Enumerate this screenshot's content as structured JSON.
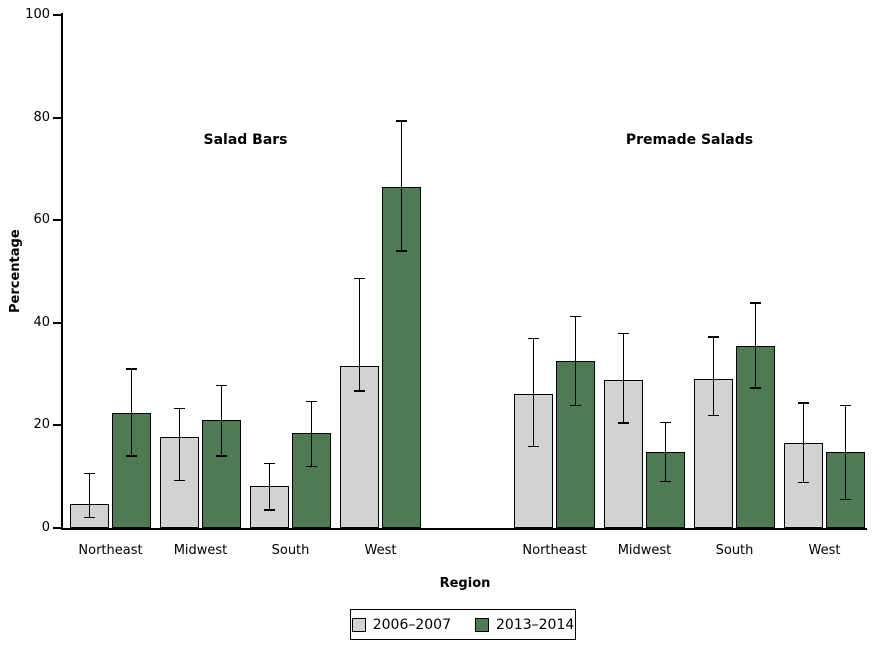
{
  "chart_data": {
    "type": "bar",
    "title": "",
    "xlabel": "Region",
    "ylabel": "Percentage",
    "ylim": [
      0,
      100
    ],
    "yticks": [
      0,
      20,
      40,
      60,
      80,
      100
    ],
    "grid": false,
    "legend_position": "bottom",
    "error_bars": true,
    "legend": [
      {
        "label": "2006–2007",
        "color": "#d2d2d2"
      },
      {
        "label": "2013–2014",
        "color": "#4e7b54"
      }
    ],
    "panels": [
      {
        "title": "Salad Bars",
        "categories": [
          "Northeast",
          "Midwest",
          "South",
          "West"
        ],
        "series": [
          {
            "name": "2006–2007",
            "color": "#d2d2d2",
            "values": [
              4.7,
              17.7,
              8.1,
              31.5
            ],
            "ci_low": [
              2.0,
              9.3,
              3.5,
              26.7
            ],
            "ci_high": [
              10.6,
              23.3,
              12.6,
              48.6
            ]
          },
          {
            "name": "2013–2014",
            "color": "#4e7b54",
            "values": [
              22.4,
              21.0,
              18.5,
              66.5
            ],
            "ci_low": [
              14.0,
              14.0,
              12.0,
              54.0
            ],
            "ci_high": [
              31.0,
              27.8,
              24.7,
              79.3
            ]
          }
        ]
      },
      {
        "title": "Premade Salads",
        "categories": [
          "Northeast",
          "Midwest",
          "South",
          "West"
        ],
        "series": [
          {
            "name": "2006–2007",
            "color": "#d2d2d2",
            "values": [
              26.2,
              28.8,
              29.1,
              16.5
            ],
            "ci_low": [
              15.9,
              20.5,
              21.9,
              8.9
            ],
            "ci_high": [
              36.9,
              37.9,
              37.2,
              24.4
            ]
          },
          {
            "name": "2013–2014",
            "color": "#4e7b54",
            "values": [
              32.5,
              14.9,
              35.4,
              14.8
            ],
            "ci_low": [
              23.9,
              9.1,
              27.3,
              5.6
            ],
            "ci_high": [
              41.2,
              20.6,
              43.9,
              23.9
            ]
          }
        ]
      }
    ]
  }
}
